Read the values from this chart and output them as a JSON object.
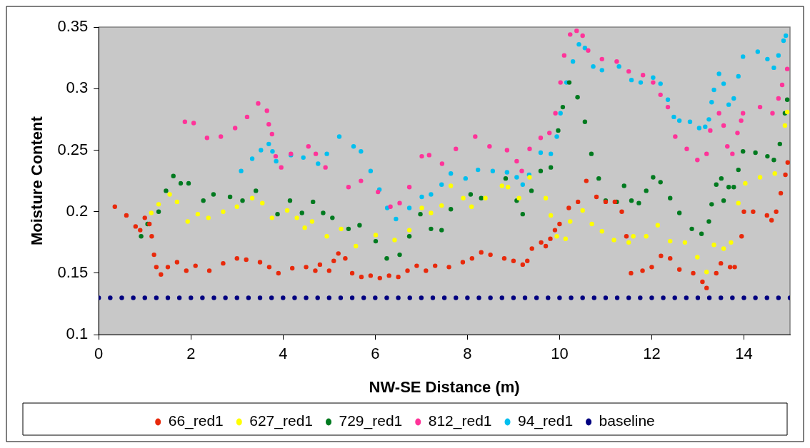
{
  "chart_data": {
    "type": "scatter",
    "xlabel": "NW-SE Distance (m)",
    "ylabel": "Moisture Content",
    "xlim": [
      0,
      15
    ],
    "xticks": [
      0,
      2,
      4,
      6,
      8,
      10,
      12,
      14
    ],
    "ylim": [
      0.1,
      0.35
    ],
    "yticks": [
      0.1,
      0.15,
      0.2,
      0.25,
      0.3,
      0.35
    ],
    "grid": false,
    "legend": "bottom",
    "marker": "circle",
    "series": [
      {
        "name": "66_red1",
        "color": "#e8290b",
        "x": [
          0.35,
          0.6,
          0.8,
          0.9,
          1.0,
          1.1,
          1.15,
          1.2,
          1.25,
          1.35,
          1.5,
          1.7,
          1.9,
          2.1,
          2.4,
          2.7,
          3.0,
          3.2,
          3.5,
          3.7,
          3.9,
          4.2,
          4.5,
          4.7,
          4.8,
          5.0,
          5.1,
          5.2,
          5.35,
          5.5,
          5.7,
          5.9,
          6.1,
          6.3,
          6.5,
          6.7,
          6.9,
          7.1,
          7.3,
          7.6,
          7.9,
          8.1,
          8.3,
          8.5,
          8.8,
          9.0,
          9.2,
          9.3,
          9.4,
          9.6,
          9.7,
          9.8,
          9.9,
          10.0,
          10.2,
          10.4,
          10.58,
          10.8,
          11.0,
          11.2,
          11.35,
          11.45,
          11.55,
          11.8,
          12.0,
          12.2,
          12.4,
          12.6,
          12.9,
          13.1,
          13.19,
          13.4,
          13.5,
          13.7,
          13.8,
          13.95,
          14.0,
          14.2,
          14.5,
          14.6,
          14.7,
          14.8,
          14.9,
          14.95
        ],
        "values": [
          0.204,
          0.197,
          0.188,
          0.185,
          0.195,
          0.19,
          0.18,
          0.165,
          0.155,
          0.149,
          0.155,
          0.159,
          0.152,
          0.156,
          0.152,
          0.158,
          0.162,
          0.161,
          0.159,
          0.155,
          0.15,
          0.154,
          0.155,
          0.152,
          0.157,
          0.152,
          0.16,
          0.166,
          0.162,
          0.15,
          0.147,
          0.148,
          0.146,
          0.148,
          0.147,
          0.152,
          0.156,
          0.152,
          0.156,
          0.155,
          0.159,
          0.162,
          0.167,
          0.165,
          0.162,
          0.16,
          0.157,
          0.16,
          0.17,
          0.175,
          0.172,
          0.178,
          0.185,
          0.19,
          0.203,
          0.208,
          0.225,
          0.212,
          0.208,
          0.208,
          0.2,
          0.18,
          0.15,
          0.152,
          0.155,
          0.164,
          0.162,
          0.153,
          0.15,
          0.143,
          0.138,
          0.15,
          0.158,
          0.155,
          0.155,
          0.18,
          0.2,
          0.2,
          0.197,
          0.193,
          0.2,
          0.215,
          0.23,
          0.24
        ]
      },
      {
        "name": "627_red1",
        "color": "#ffff00",
        "x": [
          1.14,
          1.3,
          1.54,
          1.7,
          1.93,
          2.15,
          2.38,
          2.7,
          3.0,
          3.33,
          3.55,
          3.76,
          4.09,
          4.3,
          4.47,
          4.63,
          4.95,
          5.26,
          5.58,
          6.01,
          6.42,
          6.74,
          7.01,
          7.21,
          7.44,
          7.64,
          7.91,
          8.09,
          8.39,
          8.75,
          8.88,
          9.12,
          9.35,
          9.7,
          9.81,
          9.94,
          10.13,
          10.23,
          10.5,
          10.7,
          10.92,
          11.18,
          11.5,
          11.6,
          11.88,
          12.13,
          12.4,
          12.72,
          12.99,
          13.19,
          13.35,
          13.56,
          13.72,
          13.88,
          14.03,
          14.35,
          14.67,
          14.89,
          14.94
        ],
        "values": [
          0.199,
          0.206,
          0.214,
          0.208,
          0.192,
          0.198,
          0.195,
          0.2,
          0.204,
          0.211,
          0.207,
          0.195,
          0.201,
          0.195,
          0.187,
          0.192,
          0.18,
          0.186,
          0.172,
          0.181,
          0.177,
          0.185,
          0.203,
          0.199,
          0.205,
          0.221,
          0.211,
          0.204,
          0.211,
          0.221,
          0.22,
          0.211,
          0.228,
          0.211,
          0.197,
          0.18,
          0.178,
          0.192,
          0.201,
          0.19,
          0.184,
          0.177,
          0.175,
          0.18,
          0.18,
          0.189,
          0.176,
          0.175,
          0.163,
          0.151,
          0.173,
          0.17,
          0.175,
          0.207,
          0.223,
          0.228,
          0.231,
          0.27,
          0.281
        ]
      },
      {
        "name": "729_red1",
        "color": "#007a1f",
        "x": [
          0.92,
          1.06,
          1.3,
          1.46,
          1.62,
          1.78,
          1.95,
          2.27,
          2.49,
          2.85,
          3.12,
          3.41,
          3.88,
          4.15,
          4.41,
          4.65,
          4.87,
          5.07,
          5.42,
          5.66,
          6.01,
          6.25,
          6.53,
          6.74,
          6.98,
          7.21,
          7.44,
          7.64,
          8.07,
          8.3,
          8.83,
          9.07,
          9.2,
          9.39,
          9.59,
          9.81,
          9.97,
          10.07,
          10.21,
          10.39,
          10.55,
          10.69,
          10.85,
          11.0,
          11.24,
          11.4,
          11.56,
          11.72,
          11.88,
          12.03,
          12.19,
          12.4,
          12.6,
          12.87,
          13.08,
          13.24,
          13.3,
          13.4,
          13.51,
          13.56,
          13.67,
          13.78,
          13.88,
          13.98,
          14.25,
          14.51,
          14.65,
          14.78,
          14.89,
          14.94
        ],
        "values": [
          0.18,
          0.19,
          0.2,
          0.217,
          0.229,
          0.223,
          0.223,
          0.209,
          0.214,
          0.212,
          0.209,
          0.217,
          0.198,
          0.209,
          0.199,
          0.208,
          0.199,
          0.195,
          0.186,
          0.189,
          0.176,
          0.162,
          0.165,
          0.18,
          0.198,
          0.186,
          0.185,
          0.202,
          0.214,
          0.211,
          0.227,
          0.209,
          0.198,
          0.217,
          0.233,
          0.236,
          0.266,
          0.285,
          0.305,
          0.293,
          0.273,
          0.247,
          0.227,
          0.209,
          0.208,
          0.221,
          0.209,
          0.207,
          0.217,
          0.228,
          0.224,
          0.211,
          0.199,
          0.186,
          0.182,
          0.192,
          0.206,
          0.222,
          0.227,
          0.209,
          0.22,
          0.22,
          0.234,
          0.249,
          0.248,
          0.245,
          0.242,
          0.255,
          0.28,
          0.291
        ]
      },
      {
        "name": "812_red1",
        "color": "#ff3399",
        "x": [
          1.87,
          2.06,
          2.35,
          2.65,
          2.96,
          3.22,
          3.46,
          3.65,
          3.69,
          3.76,
          3.84,
          3.96,
          4.17,
          4.55,
          4.71,
          4.92,
          5.42,
          5.69,
          6.06,
          6.33,
          6.53,
          6.74,
          7.01,
          7.17,
          7.45,
          7.75,
          8.17,
          8.48,
          8.86,
          9.07,
          9.18,
          9.35,
          9.59,
          9.78,
          9.91,
          10.02,
          10.1,
          10.23,
          10.37,
          10.5,
          10.62,
          10.92,
          11.24,
          11.5,
          11.81,
          12.03,
          12.19,
          12.35,
          12.51,
          12.76,
          12.99,
          13.19,
          13.27,
          13.46,
          13.56,
          13.64,
          13.75,
          13.86,
          13.94,
          13.98,
          14.35,
          14.62,
          14.75,
          14.83,
          14.94
        ],
        "values": [
          0.273,
          0.272,
          0.26,
          0.261,
          0.268,
          0.277,
          0.288,
          0.282,
          0.271,
          0.263,
          0.245,
          0.236,
          0.247,
          0.253,
          0.247,
          0.236,
          0.22,
          0.225,
          0.216,
          0.204,
          0.207,
          0.22,
          0.245,
          0.246,
          0.239,
          0.251,
          0.261,
          0.253,
          0.25,
          0.241,
          0.233,
          0.251,
          0.26,
          0.264,
          0.28,
          0.305,
          0.327,
          0.344,
          0.347,
          0.343,
          0.331,
          0.324,
          0.322,
          0.314,
          0.311,
          0.305,
          0.295,
          0.285,
          0.261,
          0.251,
          0.242,
          0.247,
          0.266,
          0.28,
          0.27,
          0.253,
          0.247,
          0.264,
          0.274,
          0.28,
          0.285,
          0.28,
          0.292,
          0.303,
          0.316
        ]
      },
      {
        "name": "94_red1",
        "color": "#00bfef",
        "x": [
          3.09,
          3.33,
          3.52,
          3.69,
          3.77,
          3.85,
          4.17,
          4.44,
          4.76,
          4.95,
          5.22,
          5.53,
          5.69,
          5.9,
          6.09,
          6.26,
          6.45,
          6.74,
          7.01,
          7.21,
          7.44,
          7.64,
          7.96,
          8.23,
          8.55,
          8.86,
          9.07,
          9.2,
          9.34,
          9.59,
          9.81,
          9.94,
          10.02,
          10.15,
          10.29,
          10.42,
          10.55,
          10.73,
          10.92,
          11.29,
          11.56,
          11.76,
          12.03,
          12.19,
          12.35,
          12.48,
          12.6,
          12.83,
          13.03,
          13.16,
          13.24,
          13.3,
          13.35,
          13.46,
          13.56,
          13.67,
          13.78,
          13.88,
          13.98,
          14.3,
          14.51,
          14.65,
          14.75,
          14.86,
          14.91
        ],
        "values": [
          0.233,
          0.243,
          0.25,
          0.255,
          0.249,
          0.241,
          0.246,
          0.244,
          0.239,
          0.247,
          0.261,
          0.253,
          0.249,
          0.233,
          0.218,
          0.203,
          0.194,
          0.203,
          0.212,
          0.214,
          0.222,
          0.231,
          0.227,
          0.234,
          0.233,
          0.232,
          0.228,
          0.222,
          0.23,
          0.248,
          0.247,
          0.261,
          0.28,
          0.305,
          0.322,
          0.336,
          0.333,
          0.318,
          0.315,
          0.318,
          0.307,
          0.305,
          0.309,
          0.304,
          0.291,
          0.277,
          0.274,
          0.273,
          0.268,
          0.269,
          0.275,
          0.289,
          0.299,
          0.312,
          0.304,
          0.287,
          0.292,
          0.31,
          0.326,
          0.33,
          0.324,
          0.317,
          0.327,
          0.339,
          0.343
        ]
      },
      {
        "name": "baseline",
        "color": "#000080",
        "x": [
          0,
          0.25,
          0.5,
          0.75,
          1,
          1.25,
          1.5,
          1.75,
          2,
          2.25,
          2.5,
          2.75,
          3,
          3.25,
          3.5,
          3.75,
          4,
          4.25,
          4.5,
          4.75,
          5,
          5.25,
          5.5,
          5.75,
          6,
          6.25,
          6.5,
          6.75,
          7,
          7.25,
          7.5,
          7.75,
          8,
          8.25,
          8.5,
          8.75,
          9,
          9.25,
          9.5,
          9.75,
          10,
          10.25,
          10.5,
          10.75,
          11,
          11.25,
          11.5,
          11.75,
          12,
          12.25,
          12.5,
          12.75,
          13,
          13.25,
          13.5,
          13.75,
          14,
          14.25,
          14.5,
          14.75,
          15
        ],
        "values": [
          0.13,
          0.13,
          0.13,
          0.13,
          0.13,
          0.13,
          0.13,
          0.13,
          0.13,
          0.13,
          0.13,
          0.13,
          0.13,
          0.13,
          0.13,
          0.13,
          0.13,
          0.13,
          0.13,
          0.13,
          0.13,
          0.13,
          0.13,
          0.13,
          0.13,
          0.13,
          0.13,
          0.13,
          0.13,
          0.13,
          0.13,
          0.13,
          0.13,
          0.13,
          0.13,
          0.13,
          0.13,
          0.13,
          0.13,
          0.13,
          0.13,
          0.13,
          0.13,
          0.13,
          0.13,
          0.13,
          0.13,
          0.13,
          0.13,
          0.13,
          0.13,
          0.13,
          0.13,
          0.13,
          0.13,
          0.13,
          0.13,
          0.13,
          0.13,
          0.13,
          0.13
        ]
      }
    ]
  }
}
